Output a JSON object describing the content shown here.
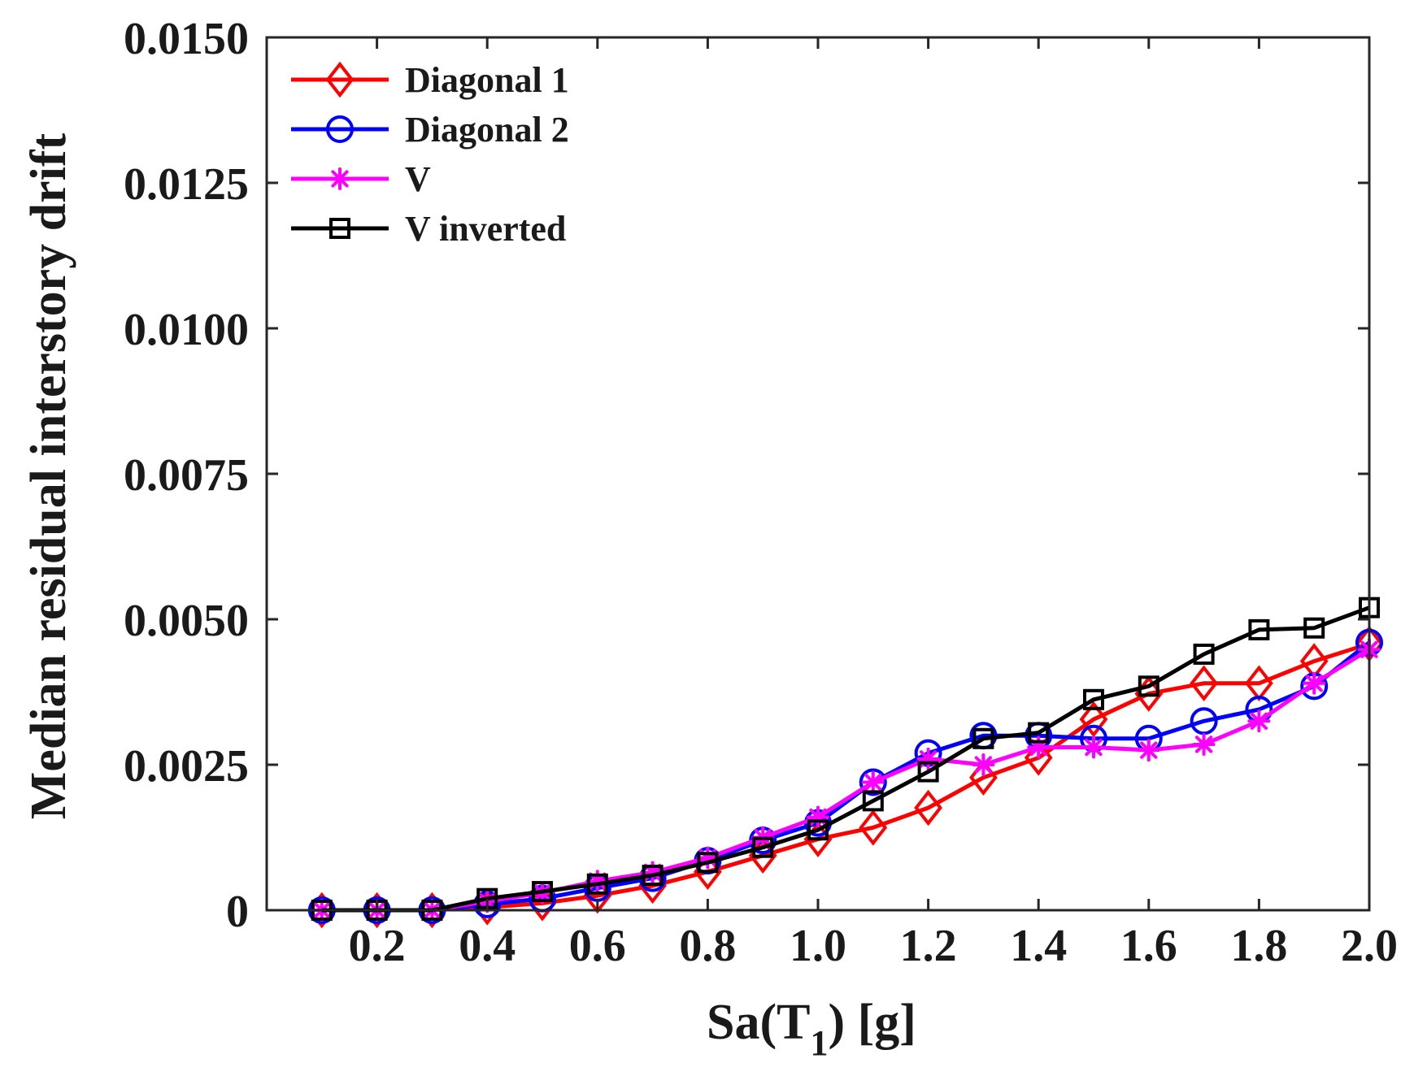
{
  "chart_data": {
    "type": "line",
    "title": "",
    "xlabel": "Sa(T",
    "xlabel_sub": "1",
    "xlabel_suffix": ") [g]",
    "ylabel": "Median residual interstory drift",
    "xlim": [
      0,
      2.0
    ],
    "ylim": [
      0,
      0.015
    ],
    "xticks": [
      0.2,
      0.4,
      0.6,
      0.8,
      1.0,
      1.2,
      1.4,
      1.6,
      1.8,
      2.0
    ],
    "xtick_labels": [
      "0.2",
      "0.4",
      "0.6",
      "0.8",
      "1.0",
      "1.2",
      "1.4",
      "1.6",
      "1.8",
      "2.0"
    ],
    "yticks": [
      0,
      0.0025,
      0.005,
      0.0075,
      0.01,
      0.0125,
      0.015
    ],
    "ytick_labels": [
      "0",
      "0.0025",
      "0.0050",
      "0.0075",
      "0.0100",
      "0.0125",
      "0.0150"
    ],
    "grid": false,
    "legend_position": "top-left",
    "x": [
      0.1,
      0.2,
      0.3,
      0.4,
      0.5,
      0.6,
      0.7,
      0.8,
      0.9,
      1.0,
      1.1,
      1.2,
      1.3,
      1.4,
      1.5,
      1.6,
      1.7,
      1.8,
      1.9,
      2.0
    ],
    "series": [
      {
        "name": "Diagonal 1",
        "color": "#ff0000",
        "marker": "diamond",
        "values": [
          0.0,
          0.0,
          0.0,
          5e-05,
          0.00012,
          0.00025,
          0.00042,
          0.00066,
          0.00094,
          0.00122,
          0.00142,
          0.00176,
          0.00228,
          0.00262,
          0.00328,
          0.00372,
          0.0039,
          0.0039,
          0.00428,
          0.00458
        ]
      },
      {
        "name": "Diagonal 2",
        "color": "#0000ff",
        "marker": "circle",
        "values": [
          0.0,
          0.0,
          0.0,
          0.0001,
          0.0002,
          0.00038,
          0.00055,
          0.00085,
          0.0012,
          0.0015,
          0.0022,
          0.0027,
          0.003,
          0.003,
          0.00295,
          0.00295,
          0.00325,
          0.00345,
          0.00385,
          0.0046
        ]
      },
      {
        "name": "V",
        "color": "#ff00ff",
        "marker": "asterisk",
        "values": [
          0.0,
          0.0,
          0.0,
          0.00015,
          0.0003,
          0.0005,
          0.00065,
          0.0009,
          0.00125,
          0.0016,
          0.0022,
          0.0026,
          0.0025,
          0.0028,
          0.0028,
          0.00275,
          0.00285,
          0.00325,
          0.0039,
          0.00448
        ]
      },
      {
        "name": "V inverted",
        "color": "#000000",
        "marker": "square",
        "values": [
          0.0,
          0.0,
          0.0,
          0.0002,
          0.00032,
          0.00045,
          0.0006,
          0.00082,
          0.00108,
          0.00138,
          0.00188,
          0.00238,
          0.00295,
          0.00305,
          0.00362,
          0.00385,
          0.0044,
          0.00482,
          0.00485,
          0.0052
        ]
      }
    ]
  }
}
